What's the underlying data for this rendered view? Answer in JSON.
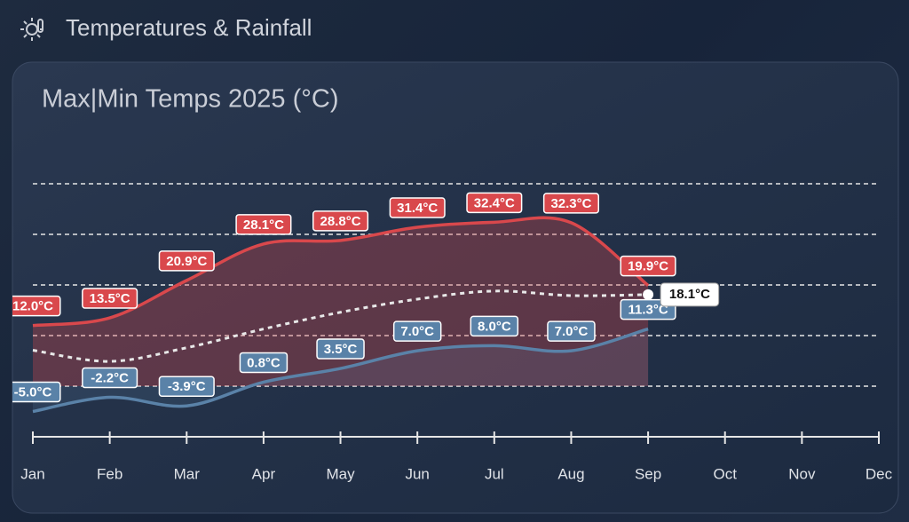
{
  "header": {
    "title": "Temperatures & Rainfall"
  },
  "chart_data": {
    "type": "line",
    "title": "Max|Min Temps 2025 (°C)",
    "categories": [
      "Jan",
      "Feb",
      "Mar",
      "Apr",
      "May",
      "Jun",
      "Jul",
      "Aug",
      "Sep",
      "Oct",
      "Nov",
      "Dec"
    ],
    "ylim": [
      -10,
      50
    ],
    "yticks": [
      0,
      10,
      20,
      30,
      40
    ],
    "grid": true,
    "series": [
      {
        "color": "#d9484c",
        "area": true,
        "values": [
          12.0,
          13.5,
          20.9,
          28.1,
          28.8,
          31.4,
          32.4,
          32.3,
          19.9,
          null,
          null,
          null
        ],
        "value_labels": [
          "12.0°C",
          "13.5°C",
          "20.9°C",
          "28.1°C",
          "28.8°C",
          "31.4°C",
          "32.4°C",
          "32.3°C",
          "19.9°C",
          null,
          null,
          null
        ]
      },
      {
        "color": "#5a82a8",
        "area": true,
        "values": [
          -5.0,
          -2.2,
          -3.9,
          0.8,
          3.5,
          7.0,
          8.0,
          7.0,
          11.3,
          null,
          null,
          null
        ],
        "value_labels": [
          "-5.0°C",
          "-2.2°C",
          "-3.9°C",
          "0.8°C",
          "3.5°C",
          "7.0°C",
          "8.0°C",
          "7.0°C",
          "11.3°C",
          null,
          null,
          null
        ]
      },
      {
        "color": "#e8e8e8",
        "dashed": true,
        "values": [
          7.1,
          4.9,
          7.6,
          11.3,
          14.6,
          17.2,
          18.8,
          17.9,
          18.1,
          null,
          null,
          null
        ],
        "value_labels": [
          null,
          null,
          null,
          null,
          null,
          null,
          null,
          null,
          "18.1°C",
          null,
          null,
          null
        ]
      }
    ]
  }
}
